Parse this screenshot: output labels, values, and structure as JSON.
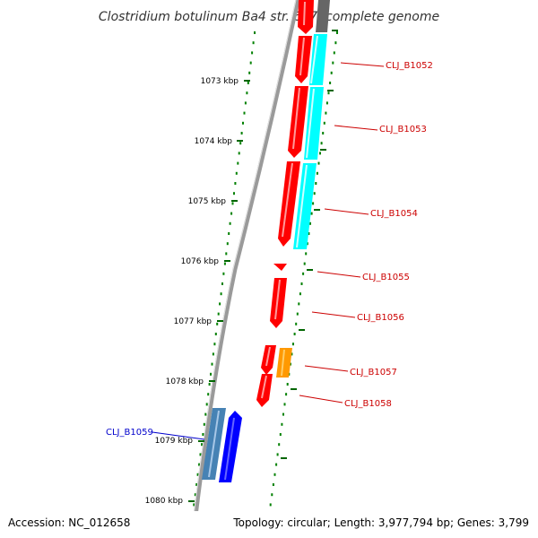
{
  "title": "Clostridium botulinum Ba4 str. 657, complete genome",
  "footer": {
    "accession": "Accession: NC_012658",
    "topology": "Topology: circular; Length: 3,977,794 bp; Genes: 3,799"
  },
  "scale": {
    "unit": "kbp",
    "ticks": [
      "1073 kbp",
      "1074 kbp",
      "1075 kbp",
      "1076 kbp",
      "1077 kbp",
      "1078 kbp",
      "1079 kbp",
      "1080 kbp"
    ]
  },
  "colors": {
    "forward_gene": "#ff0000",
    "forward_cds": "#00ffff",
    "highlight_gene": "#ff9900",
    "reverse_gene": "#0000ff",
    "reverse_cds": "#4682b4",
    "backbone": "#808080",
    "tick": "#008000",
    "label_forward": "#cc0000",
    "label_reverse": "#0000cc"
  },
  "genes": [
    {
      "label": "CLJ_B1052",
      "strand": "forward"
    },
    {
      "label": "CLJ_B1053",
      "strand": "forward"
    },
    {
      "label": "CLJ_B1054",
      "strand": "forward"
    },
    {
      "label": "CLJ_B1055",
      "strand": "forward"
    },
    {
      "label": "CLJ_B1056",
      "strand": "forward"
    },
    {
      "label": "CLJ_B1057",
      "strand": "forward"
    },
    {
      "label": "CLJ_B1058",
      "strand": "forward"
    },
    {
      "label": "CLJ_B1059",
      "strand": "reverse"
    }
  ]
}
